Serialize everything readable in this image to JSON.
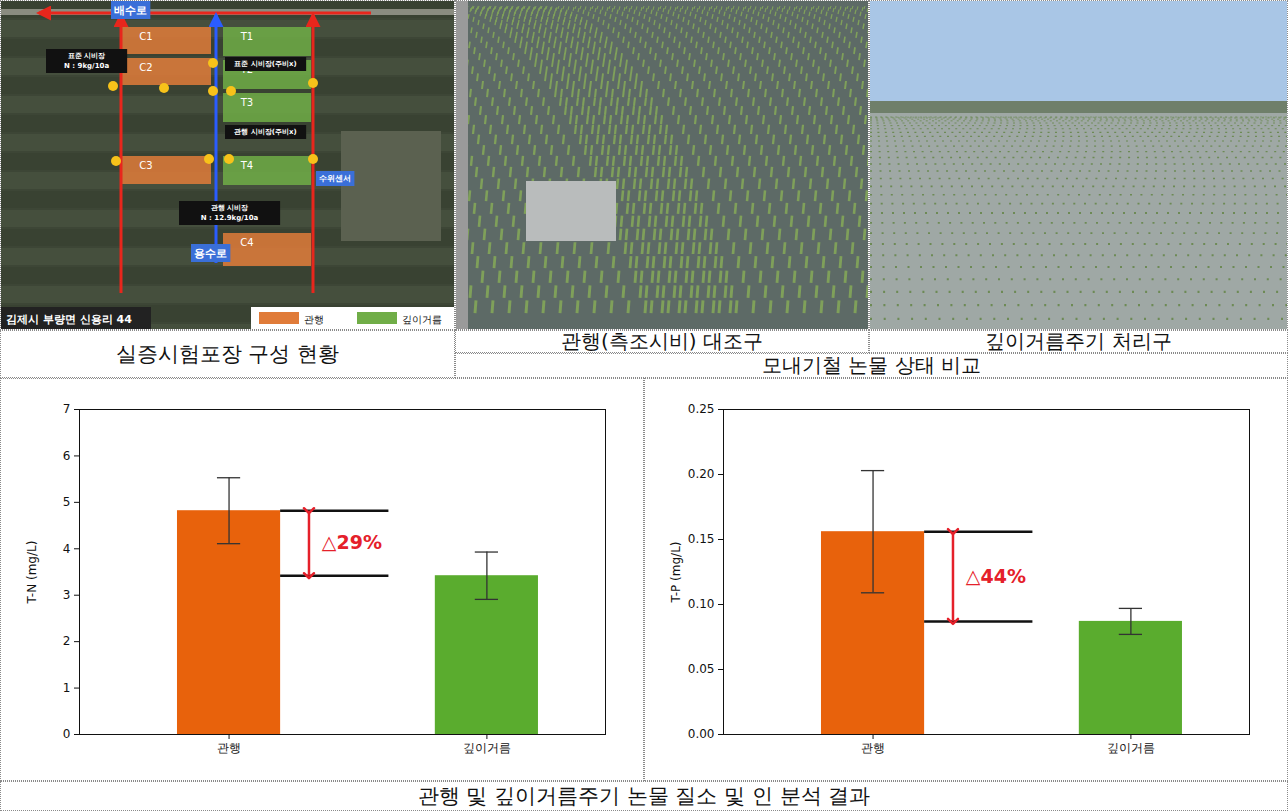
{
  "field_map": {
    "caption": "실증시험포장 구성 현황",
    "location": "김제시 부량면 신용리 44",
    "drain": "배수로",
    "inlet": "용수로",
    "sensor": "수위센서",
    "plots": [
      {
        "label": "C1",
        "group": "관행"
      },
      {
        "label": "C2",
        "group": "관행"
      },
      {
        "label": "C3",
        "group": "관행"
      },
      {
        "label": "C4",
        "group": "관행"
      },
      {
        "label": "T1",
        "group": "깊이거름"
      },
      {
        "label": "T2",
        "group": "깊이거름"
      },
      {
        "label": "T3",
        "group": "깊이거름"
      },
      {
        "label": "T4",
        "group": "깊이거름"
      }
    ],
    "notes": [
      [
        "표준 시비장",
        "N : 9kg/10a"
      ],
      [
        "표준 시비장(주비x)"
      ],
      [
        "관행 시비장(주비x)"
      ],
      [
        "관행 시비장",
        "N : 12.9kg/10a"
      ]
    ],
    "legend": [
      {
        "label": "관행",
        "color": "#e07b39"
      },
      {
        "label": "깊이거름",
        "color": "#70ad47"
      }
    ]
  },
  "photos": {
    "caption": "모내기철 논물 상태 비교",
    "items": [
      "관행(측조시비) 대조구",
      "깊이거름주기 처리구"
    ]
  },
  "caption": "관행 및 깊이거름주기 논물 질소 및 인 분석 결과",
  "chart_data": [
    {
      "type": "bar",
      "y_label": "T-N (mg/L)",
      "categories": [
        "관행",
        "깊이거름"
      ],
      "values": [
        4.82,
        3.42
      ],
      "errors": [
        0.71,
        0.51
      ],
      "colors": [
        "#e8620c",
        "#5aac2e"
      ],
      "ylim": [
        0,
        7
      ],
      "yticks": [
        0,
        1,
        2,
        3,
        4,
        5,
        6,
        7
      ],
      "annotations": [
        {
          "text": "△29%"
        }
      ]
    },
    {
      "type": "bar",
      "y_label": "T-P (mg/L)",
      "categories": [
        "관행",
        "깊이거름"
      ],
      "values": [
        0.156,
        0.087
      ],
      "errors": [
        0.047,
        0.01
      ],
      "colors": [
        "#e8620c",
        "#5aac2e"
      ],
      "ylim": [
        0,
        0.25
      ],
      "yticks": [
        {
          "value": 0,
          "label": "0.00"
        },
        {
          "value": 0.05,
          "label": "0.05"
        },
        {
          "value": 0.1,
          "label": "0.10"
        },
        {
          "value": 0.15,
          "label": "0.15"
        },
        {
          "value": 0.2,
          "label": "0.20"
        },
        {
          "value": 0.25,
          "label": "0.25"
        }
      ],
      "annotations": [
        {
          "text": "△44%"
        }
      ]
    }
  ]
}
